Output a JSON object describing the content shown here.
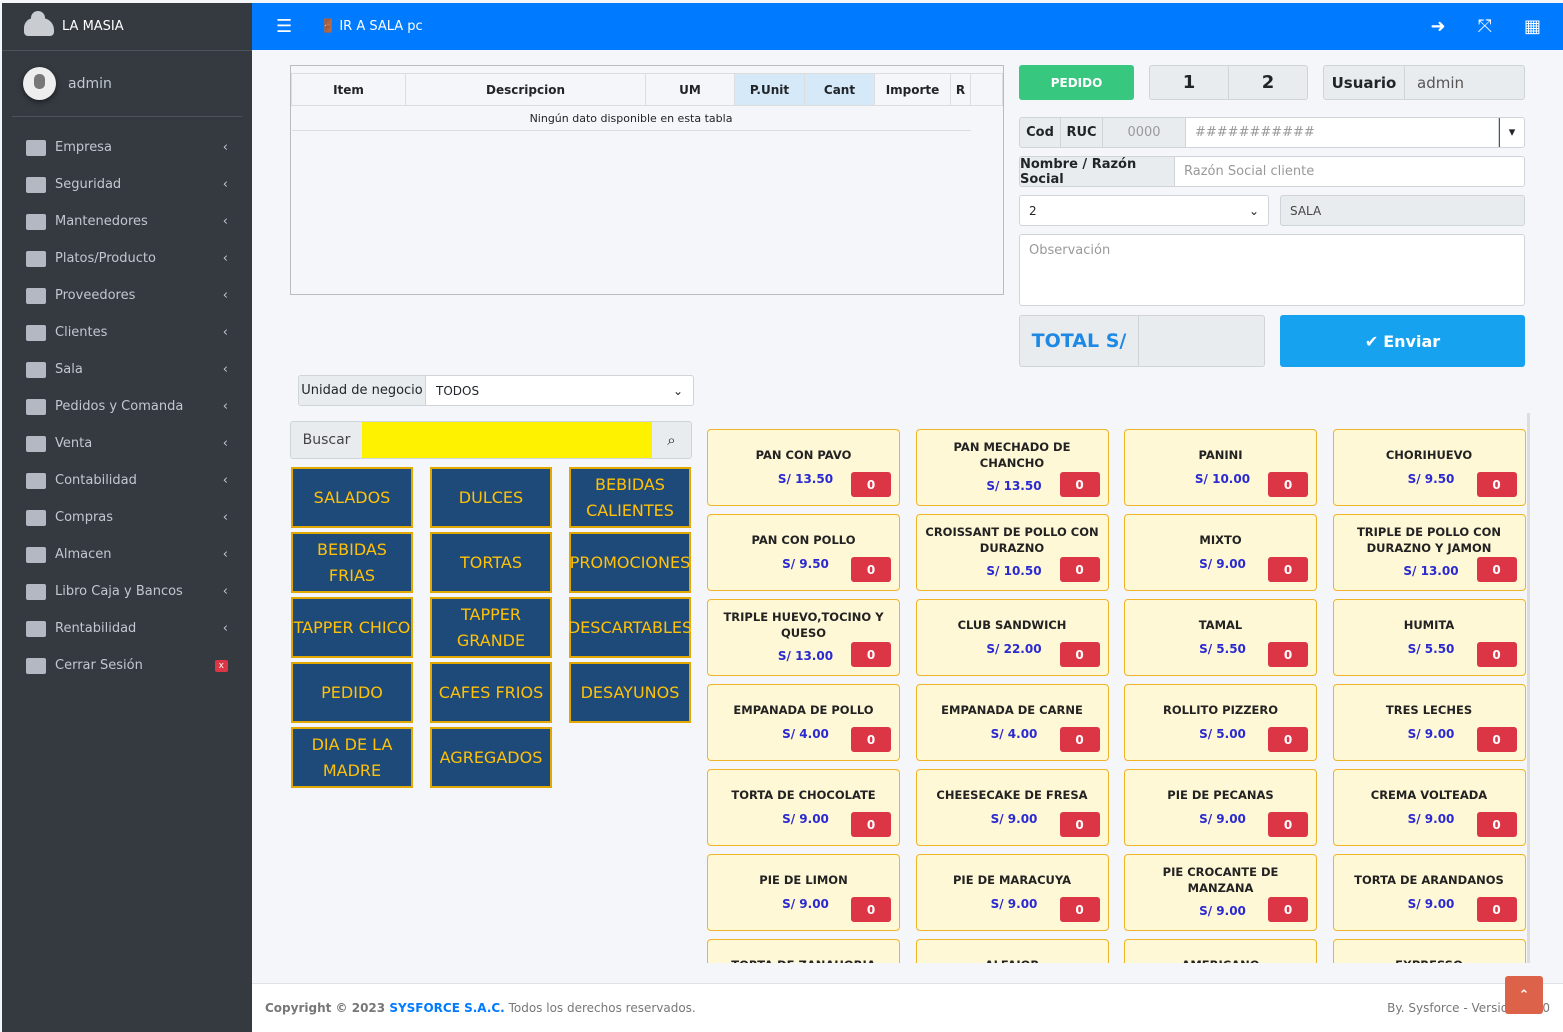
{
  "brand": "LA MASIA",
  "user": "admin",
  "nav": [
    {
      "label": "Empresa"
    },
    {
      "label": "Seguridad"
    },
    {
      "label": "Mantenedores"
    },
    {
      "label": "Platos/Producto"
    },
    {
      "label": "Proveedores"
    },
    {
      "label": "Clientes"
    },
    {
      "label": "Sala"
    },
    {
      "label": "Pedidos y Comanda"
    },
    {
      "label": "Venta"
    },
    {
      "label": "Contabilidad"
    },
    {
      "label": "Compras"
    },
    {
      "label": "Almacen"
    },
    {
      "label": "Libro Caja y Bancos"
    },
    {
      "label": "Rentabilidad"
    },
    {
      "label": "Cerrar Sesión",
      "badge": "x"
    }
  ],
  "topbar": {
    "sala": "IR A SALA pc"
  },
  "table": {
    "headers": [
      "Item",
      "Descripcion",
      "UM",
      "P.Unit",
      "Cant",
      "Importe",
      "R"
    ],
    "empty": "Ningún dato disponible en esta tabla"
  },
  "form": {
    "pedido": "PEDIDO",
    "n1": "1",
    "n2": "2",
    "usuario_label": "Usuario",
    "usuario": "admin",
    "cod": "Cod",
    "ruc": "RUC",
    "cod_value": "0000",
    "ruc_placeholder": "###########",
    "nombre_label": "Nombre / Razón Social",
    "nombre_placeholder": "Razón Social cliente",
    "mesa": "2",
    "sala": "SALA",
    "obs_placeholder": "Observación",
    "total_label": "TOTAL S/",
    "total": "",
    "enviar": "Enviar"
  },
  "filter": {
    "unidad_label": "Unidad de negocio",
    "unidad": "TODOS",
    "buscar": "Buscar",
    "search_value": ""
  },
  "categories": [
    "SALADOS",
    "DULCES",
    "BEBIDAS CALIENTES",
    "BEBIDAS FRIAS",
    "TORTAS",
    "PROMOCIONES",
    "TAPPER CHICO",
    "TAPPER GRANDE",
    "DESCARTABLES",
    "PEDIDO",
    "CAFES FRIOS",
    "DESAYUNOS",
    "DIA DE LA MADRE",
    "AGREGADOS"
  ],
  "products": [
    {
      "name": "PAN CON PAVO",
      "price": "S/ 13.50",
      "qty": "0"
    },
    {
      "name": "PAN MECHADO DE CHANCHO",
      "price": "S/ 13.50",
      "qty": "0"
    },
    {
      "name": "PANINI",
      "price": "S/ 10.00",
      "qty": "0"
    },
    {
      "name": "CHORIHUEVO",
      "price": "S/ 9.50",
      "qty": "0"
    },
    {
      "name": "PAN CON POLLO",
      "price": "S/ 9.50",
      "qty": "0"
    },
    {
      "name": "CROISSANT DE POLLO CON DURAZNO",
      "price": "S/ 10.50",
      "qty": "0"
    },
    {
      "name": "MIXTO",
      "price": "S/ 9.00",
      "qty": "0"
    },
    {
      "name": "TRIPLE DE POLLO CON DURAZNO Y JAMON",
      "price": "S/ 13.00",
      "qty": "0"
    },
    {
      "name": "TRIPLE HUEVO,TOCINO Y QUESO",
      "price": "S/ 13.00",
      "qty": "0"
    },
    {
      "name": "CLUB SANDWICH",
      "price": "S/ 22.00",
      "qty": "0"
    },
    {
      "name": "TAMAL",
      "price": "S/ 5.50",
      "qty": "0"
    },
    {
      "name": "HUMITA",
      "price": "S/ 5.50",
      "qty": "0"
    },
    {
      "name": "EMPANADA DE POLLO",
      "price": "S/ 4.00",
      "qty": "0"
    },
    {
      "name": "EMPANADA DE CARNE",
      "price": "S/ 4.00",
      "qty": "0"
    },
    {
      "name": "ROLLITO PIZZERO",
      "price": "S/ 5.00",
      "qty": "0"
    },
    {
      "name": "TRES LECHES",
      "price": "S/ 9.00",
      "qty": "0"
    },
    {
      "name": "TORTA DE CHOCOLATE",
      "price": "S/ 9.00",
      "qty": "0"
    },
    {
      "name": "CHEESECAKE DE FRESA",
      "price": "S/ 9.00",
      "qty": "0"
    },
    {
      "name": "PIE DE PECANAS",
      "price": "S/ 9.00",
      "qty": "0"
    },
    {
      "name": "CREMA VOLTEADA",
      "price": "S/ 9.00",
      "qty": "0"
    },
    {
      "name": "PIE DE LIMON",
      "price": "S/ 9.00",
      "qty": "0"
    },
    {
      "name": "PIE DE MARACUYA",
      "price": "S/ 9.00",
      "qty": "0"
    },
    {
      "name": "PIE CROCANTE DE MANZANA",
      "price": "S/ 9.00",
      "qty": "0"
    },
    {
      "name": "TORTA DE ARANDANOS",
      "price": "S/ 9.00",
      "qty": "0"
    },
    {
      "name": "TORTA DE ZANAHORIA"
    },
    {
      "name": "ALFAJOR"
    },
    {
      "name": "AMERICANO"
    },
    {
      "name": "EXPRESSO"
    }
  ],
  "footer": {
    "copy": "Copyright © 2023",
    "company": "SYSFORCE S.A.C.",
    "rights": "Todos los derechos reservados.",
    "version": "By. Sysforce - Version 1.0.0"
  }
}
